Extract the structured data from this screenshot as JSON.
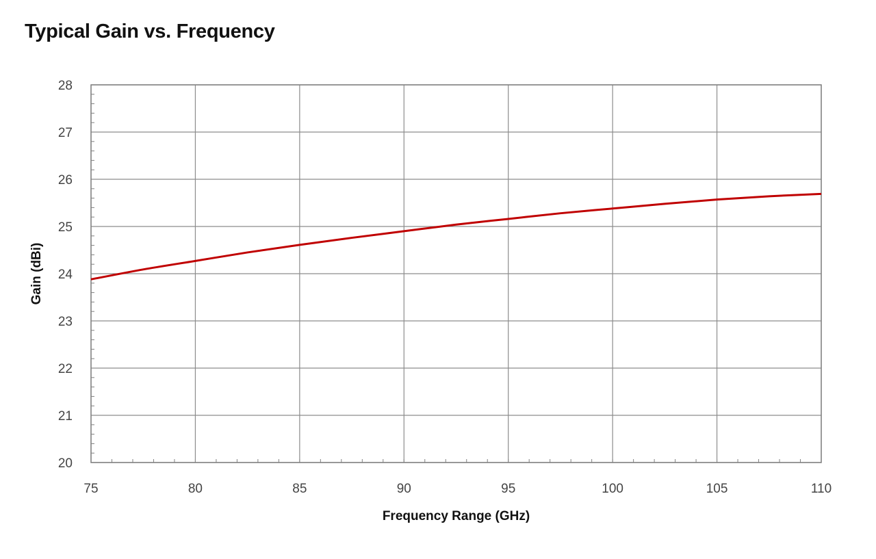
{
  "chart_data": {
    "type": "line",
    "title": "Typical Gain vs. Frequency",
    "xlabel": "Frequency Range (GHz)",
    "ylabel": "Gain (dBi)",
    "xlim": [
      75,
      110
    ],
    "ylim": [
      20,
      28
    ],
    "x_ticks": [
      75,
      80,
      85,
      90,
      95,
      100,
      105,
      110
    ],
    "y_ticks": [
      20,
      21,
      22,
      23,
      24,
      25,
      26,
      27,
      28
    ],
    "grid": true,
    "legend": "none",
    "series": [
      {
        "color": "#c00000",
        "x": [
          75,
          77.5,
          80,
          82.5,
          85,
          87.5,
          90,
          92.5,
          95,
          97.5,
          100,
          102.5,
          105,
          107.5,
          110
        ],
        "y": [
          23.88,
          24.09,
          24.27,
          24.45,
          24.61,
          24.76,
          24.9,
          25.04,
          25.16,
          25.28,
          25.38,
          25.48,
          25.57,
          25.64,
          25.69
        ]
      }
    ]
  }
}
